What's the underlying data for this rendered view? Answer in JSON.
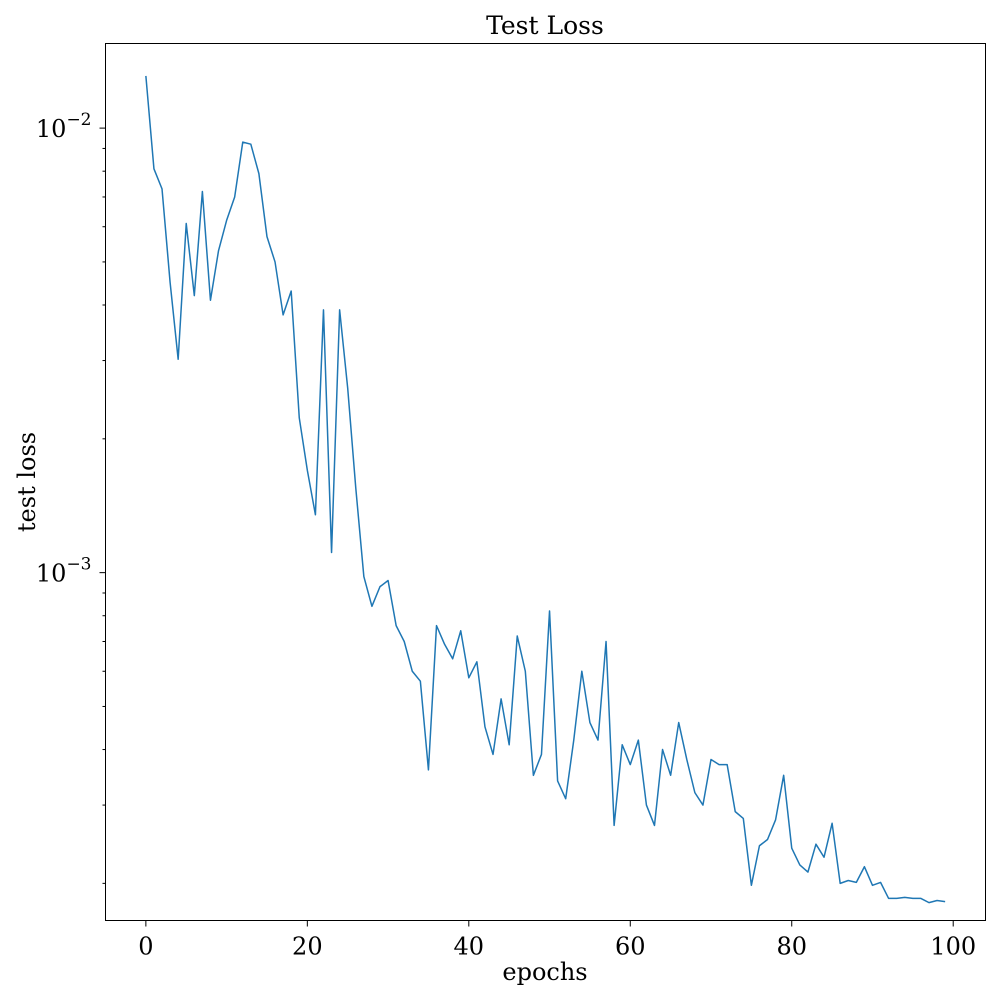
{
  "chart_data": {
    "type": "line",
    "title": "Test Loss",
    "xlabel": "epochs",
    "ylabel": "test loss",
    "xlim": [
      -5,
      104
    ],
    "ylim": [
      0.000165,
      0.0155
    ],
    "yscale": "log",
    "grid": false,
    "legend": "none",
    "xticks": [
      0,
      20,
      40,
      60,
      80,
      100
    ],
    "xtick_labels": [
      "0",
      "20",
      "40",
      "60",
      "80",
      "100"
    ],
    "yticks": [
      0.001,
      0.01
    ],
    "ytick_labels": [
      {
        "base": "10",
        "exp": "−3"
      },
      {
        "base": "10",
        "exp": "−2"
      }
    ],
    "series": [
      {
        "color": "#1f77b4",
        "x": [
          0,
          1,
          2,
          3,
          4,
          5,
          6,
          7,
          8,
          9,
          10,
          11,
          12,
          13,
          14,
          15,
          16,
          17,
          18,
          19,
          20,
          21,
          22,
          23,
          24,
          25,
          26,
          27,
          28,
          29,
          30,
          31,
          32,
          33,
          34,
          35,
          36,
          37,
          38,
          39,
          40,
          41,
          42,
          43,
          44,
          45,
          46,
          47,
          48,
          49,
          50,
          51,
          52,
          53,
          54,
          55,
          56,
          57,
          58,
          59,
          60,
          61,
          62,
          63,
          64,
          65,
          66,
          67,
          68,
          69,
          70,
          71,
          72,
          73,
          74,
          75,
          76,
          77,
          78,
          79,
          80,
          81,
          82,
          83,
          84,
          85,
          86,
          87,
          88,
          89,
          90,
          91,
          92,
          93,
          94,
          95,
          96,
          97,
          98,
          99
        ],
        "values": [
          0.0131,
          0.0081,
          0.0073,
          0.0045,
          0.00302,
          0.0061,
          0.0042,
          0.0072,
          0.0041,
          0.0053,
          0.0062,
          0.007,
          0.0093,
          0.0092,
          0.0079,
          0.0057,
          0.005,
          0.0038,
          0.0043,
          0.00223,
          0.0017,
          0.00135,
          0.0039,
          0.00111,
          0.0039,
          0.0026,
          0.00155,
          0.00098,
          0.00084,
          0.00093,
          0.00096,
          0.00076,
          0.0007,
          0.0006,
          0.00057,
          0.00036,
          0.00076,
          0.00069,
          0.00064,
          0.00074,
          0.00058,
          0.00063,
          0.00045,
          0.00039,
          0.00052,
          0.00041,
          0.00072,
          0.0006,
          0.00035,
          0.00039,
          0.00082,
          0.00034,
          0.00031,
          0.00042,
          0.0006,
          0.00046,
          0.00042,
          0.0007,
          0.00027,
          0.00041,
          0.00037,
          0.00042,
          0.0003,
          0.00027,
          0.0004,
          0.00035,
          0.00046,
          0.00038,
          0.00032,
          0.0003,
          0.00038,
          0.00037,
          0.00037,
          0.00029,
          0.00028,
          0.000198,
          0.000243,
          0.000251,
          0.000278,
          0.00035,
          0.00024,
          0.00022,
          0.000212,
          0.000245,
          0.000229,
          0.000273,
          0.0002,
          0.000203,
          0.000201,
          0.000218,
          0.000198,
          0.000201,
          0.000185,
          0.000185,
          0.000186,
          0.000185,
          0.000185,
          0.000181,
          0.000183,
          0.000182
        ]
      }
    ]
  }
}
